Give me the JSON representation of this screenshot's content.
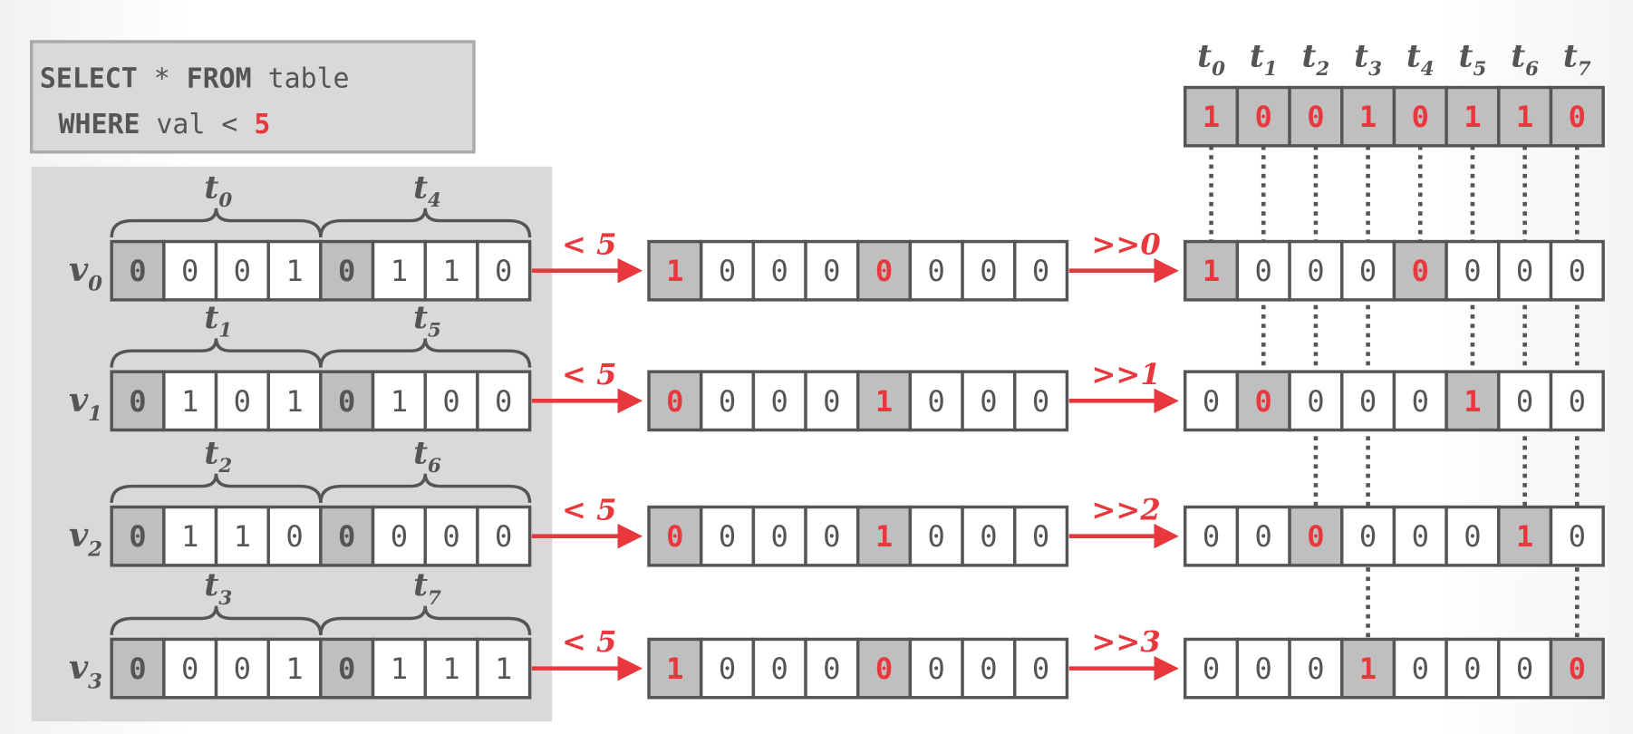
{
  "query": {
    "select_kw": "SELECT",
    "star": "*",
    "from_kw": "FROM",
    "table": "table",
    "where_kw": "WHERE",
    "column": "val",
    "operator": "<",
    "value": "5"
  },
  "colors": {
    "accent_red": "#e8383d",
    "text_gray": "#555555",
    "cell_shade": "#bfbfbf",
    "panel_gray": "#d9d9d9",
    "cell_border": "#555555"
  },
  "rows": [
    {
      "vector_label": "v0",
      "group_labels": [
        "t0",
        "t4"
      ],
      "bits": [
        "0",
        "0",
        "0",
        "1",
        "0",
        "1",
        "1",
        "0"
      ],
      "compare_label": "< 5",
      "compare_bits": [
        "1",
        "0",
        "0",
        "0",
        "0",
        "0",
        "0",
        "0"
      ],
      "shift_label": ">>0",
      "shifted_bits": [
        "1",
        "0",
        "0",
        "0",
        "0",
        "0",
        "0",
        "0"
      ],
      "shifted_highlight": [
        0,
        4
      ]
    },
    {
      "vector_label": "v1",
      "group_labels": [
        "t1",
        "t5"
      ],
      "bits": [
        "0",
        "1",
        "0",
        "1",
        "0",
        "1",
        "0",
        "0"
      ],
      "compare_label": "< 5",
      "compare_bits": [
        "0",
        "0",
        "0",
        "0",
        "1",
        "0",
        "0",
        "0"
      ],
      "shift_label": ">>1",
      "shifted_bits": [
        "0",
        "0",
        "0",
        "0",
        "0",
        "1",
        "0",
        "0"
      ],
      "shifted_highlight": [
        1,
        5
      ]
    },
    {
      "vector_label": "v2",
      "group_labels": [
        "t2",
        "t6"
      ],
      "bits": [
        "0",
        "1",
        "1",
        "0",
        "0",
        "0",
        "0",
        "0"
      ],
      "compare_label": "< 5",
      "compare_bits": [
        "0",
        "0",
        "0",
        "0",
        "1",
        "0",
        "0",
        "0"
      ],
      "shift_label": ">>2",
      "shifted_bits": [
        "0",
        "0",
        "0",
        "0",
        "0",
        "0",
        "1",
        "0"
      ],
      "shifted_highlight": [
        2,
        6
      ]
    },
    {
      "vector_label": "v3",
      "group_labels": [
        "t3",
        "t7"
      ],
      "bits": [
        "0",
        "0",
        "0",
        "1",
        "0",
        "1",
        "1",
        "1"
      ],
      "compare_label": "< 5",
      "compare_bits": [
        "1",
        "0",
        "0",
        "0",
        "0",
        "0",
        "0",
        "0"
      ],
      "shift_label": ">>3",
      "shifted_bits": [
        "0",
        "0",
        "0",
        "1",
        "0",
        "0",
        "0",
        "0"
      ],
      "shifted_highlight": [
        3,
        7
      ]
    }
  ],
  "source_highlight": [
    0,
    4
  ],
  "compare_highlight": [
    0,
    4
  ],
  "result": {
    "labels": [
      "t0",
      "t1",
      "t2",
      "t3",
      "t4",
      "t5",
      "t6",
      "t7"
    ],
    "bits": [
      "1",
      "0",
      "0",
      "1",
      "0",
      "1",
      "1",
      "0"
    ]
  }
}
